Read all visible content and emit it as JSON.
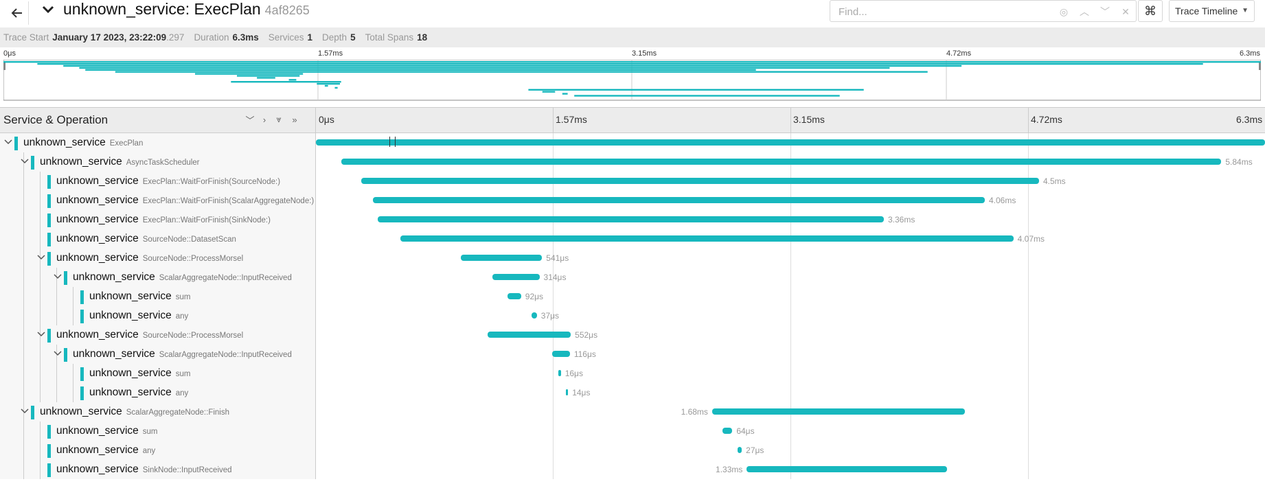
{
  "header": {
    "back_icon": "arrow-left-icon",
    "collapse_icon": "chevron-down-icon",
    "title_service": "unknown_service: ExecPlan",
    "trace_id": "4af8265",
    "find_placeholder": "Find...",
    "keyboard_icon": "command-icon",
    "view_select": "Trace Timeline"
  },
  "stats": {
    "trace_start_label": "Trace Start",
    "trace_start_value": "January 17 2023, 23:22:09",
    "trace_start_ms": ".297",
    "duration_label": "Duration",
    "duration_value": "6.3ms",
    "services_label": "Services",
    "services_value": "1",
    "depth_label": "Depth",
    "depth_value": "5",
    "total_spans_label": "Total Spans",
    "total_spans_value": "18"
  },
  "minimap": {
    "ticks": [
      "0μs",
      "1.57ms",
      "3.15ms",
      "4.72ms",
      "6.3ms"
    ]
  },
  "timeline": {
    "column_title": "Service & Operation",
    "ticks": [
      "0μs",
      "1.57ms",
      "3.15ms",
      "4.72ms",
      "6.3ms"
    ],
    "total_ms": 6.3,
    "accent": "#17b8be"
  },
  "spans": [
    {
      "depth": 0,
      "toggle": true,
      "service": "unknown_service",
      "operation": "ExecPlan",
      "start_ms": 0,
      "dur_ms": 6.3,
      "label": "",
      "label_side": "right"
    },
    {
      "depth": 1,
      "toggle": true,
      "service": "unknown_service",
      "operation": "AsyncTaskScheduler",
      "start_ms": 0.17,
      "dur_ms": 5.84,
      "label": "5.84ms",
      "label_side": "right"
    },
    {
      "depth": 2,
      "toggle": false,
      "service": "unknown_service",
      "operation": "ExecPlan::WaitForFinish(SourceNode:)",
      "start_ms": 0.3,
      "dur_ms": 4.5,
      "label": "4.5ms",
      "label_side": "right"
    },
    {
      "depth": 2,
      "toggle": false,
      "service": "unknown_service",
      "operation": "ExecPlan::WaitForFinish(ScalarAggregateNode:)",
      "start_ms": 0.38,
      "dur_ms": 4.06,
      "label": "4.06ms",
      "label_side": "right"
    },
    {
      "depth": 2,
      "toggle": false,
      "service": "unknown_service",
      "operation": "ExecPlan::WaitForFinish(SinkNode:)",
      "start_ms": 0.41,
      "dur_ms": 3.36,
      "label": "3.36ms",
      "label_side": "right"
    },
    {
      "depth": 2,
      "toggle": false,
      "service": "unknown_service",
      "operation": "SourceNode::DatasetScan",
      "start_ms": 0.56,
      "dur_ms": 4.07,
      "label": "4.07ms",
      "label_side": "right"
    },
    {
      "depth": 2,
      "toggle": true,
      "service": "unknown_service",
      "operation": "SourceNode::ProcessMorsel",
      "start_ms": 0.96,
      "dur_ms": 0.541,
      "label": "541μs",
      "label_side": "right"
    },
    {
      "depth": 3,
      "toggle": true,
      "service": "unknown_service",
      "operation": "ScalarAggregateNode::InputReceived",
      "start_ms": 1.17,
      "dur_ms": 0.314,
      "label": "314μs",
      "label_side": "right"
    },
    {
      "depth": 4,
      "toggle": false,
      "service": "unknown_service",
      "operation": "sum",
      "start_ms": 1.27,
      "dur_ms": 0.092,
      "label": "92μs",
      "label_side": "right"
    },
    {
      "depth": 4,
      "toggle": false,
      "service": "unknown_service",
      "operation": "any",
      "start_ms": 1.43,
      "dur_ms": 0.037,
      "label": "37μs",
      "label_side": "right"
    },
    {
      "depth": 2,
      "toggle": true,
      "service": "unknown_service",
      "operation": "SourceNode::ProcessMorsel",
      "start_ms": 1.14,
      "dur_ms": 0.552,
      "label": "552μs",
      "label_side": "right"
    },
    {
      "depth": 3,
      "toggle": true,
      "service": "unknown_service",
      "operation": "ScalarAggregateNode::InputReceived",
      "start_ms": 1.57,
      "dur_ms": 0.116,
      "label": "116μs",
      "label_side": "right"
    },
    {
      "depth": 4,
      "toggle": false,
      "service": "unknown_service",
      "operation": "sum",
      "start_ms": 1.61,
      "dur_ms": 0.016,
      "label": "16μs",
      "label_side": "right"
    },
    {
      "depth": 4,
      "toggle": false,
      "service": "unknown_service",
      "operation": "any",
      "start_ms": 1.66,
      "dur_ms": 0.014,
      "label": "14μs",
      "label_side": "right"
    },
    {
      "depth": 1,
      "toggle": true,
      "service": "unknown_service",
      "operation": "ScalarAggregateNode::Finish",
      "start_ms": 2.63,
      "dur_ms": 1.68,
      "label": "1.68ms",
      "label_side": "left"
    },
    {
      "depth": 2,
      "toggle": false,
      "service": "unknown_service",
      "operation": "sum",
      "start_ms": 2.7,
      "dur_ms": 0.064,
      "label": "64μs",
      "label_side": "right"
    },
    {
      "depth": 2,
      "toggle": false,
      "service": "unknown_service",
      "operation": "any",
      "start_ms": 2.8,
      "dur_ms": 0.027,
      "label": "27μs",
      "label_side": "right"
    },
    {
      "depth": 2,
      "toggle": false,
      "service": "unknown_service",
      "operation": "SinkNode::InputReceived",
      "start_ms": 2.86,
      "dur_ms": 1.33,
      "label": "1.33ms",
      "label_side": "left"
    }
  ]
}
